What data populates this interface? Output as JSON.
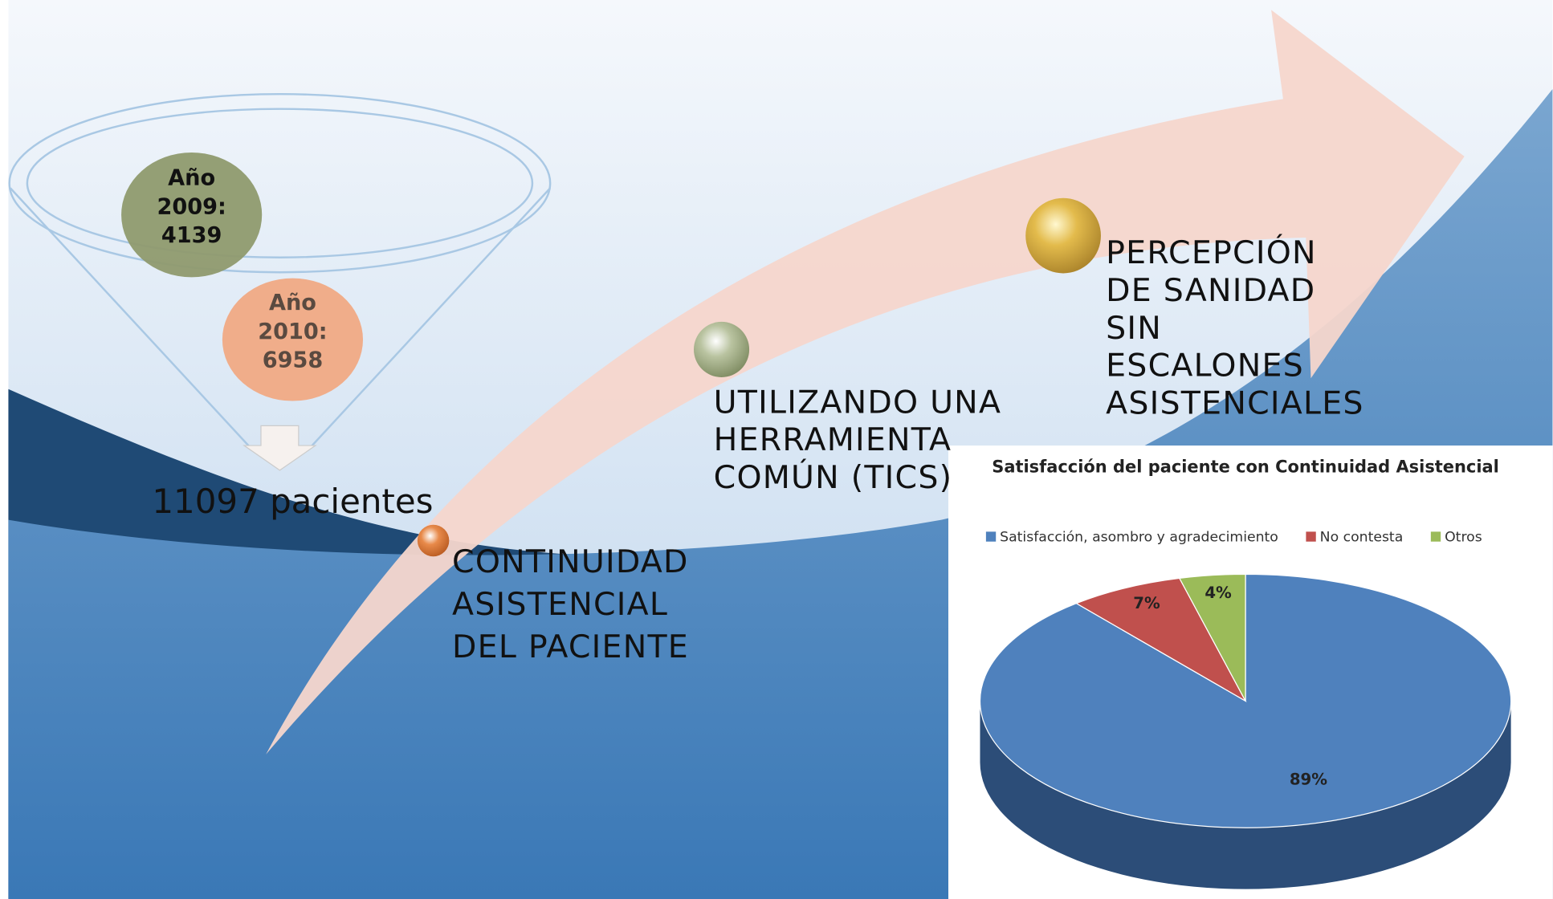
{
  "funnel": {
    "items": [
      {
        "lines": [
          "Año",
          "2009:",
          "4139"
        ]
      },
      {
        "lines": [
          "Año",
          "2010:",
          "6958"
        ]
      }
    ],
    "total": "11097 pacientes"
  },
  "steps": [
    {
      "lines": [
        "CONTINUIDAD",
        "ASISTENCIAL",
        "DEL PACIENTE"
      ]
    },
    {
      "lines": [
        "UTILIZANDO UNA",
        "HERRAMIENTA",
        "COMÚN (TICS)"
      ]
    },
    {
      "lines": [
        "PERCEPCIÓN",
        "DE SANIDAD",
        "SIN",
        "ESCALONES",
        "ASISTENCIALES"
      ]
    }
  ],
  "chart_data": {
    "type": "pie",
    "title": "Satisfacción del paciente con Continuidad Asistencial",
    "categories": [
      "Satisfacción, asombro y agradecimiento",
      "No contesta",
      "Otros"
    ],
    "values": [
      89,
      7,
      4
    ],
    "value_labels": [
      "89%",
      "7%",
      "4%"
    ],
    "colors": [
      "#4f81bd",
      "#c0504d",
      "#9bbb59"
    ],
    "legend": "top"
  }
}
